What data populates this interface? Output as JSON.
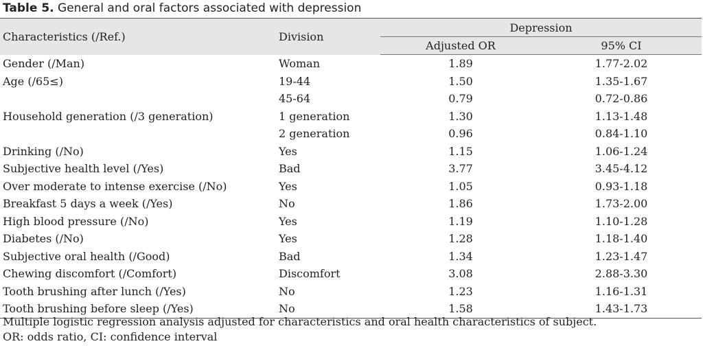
{
  "caption": {
    "label": "Table 5.",
    "title": "General and oral factors associated with depression"
  },
  "header": {
    "characteristics": "Characteristics (/Ref.)",
    "division": "Division",
    "group": "Depression",
    "adjusted_or": "Adjusted OR",
    "ci": "95% CI"
  },
  "rows": [
    {
      "characteristic": "Gender (/Man)",
      "division": "Woman",
      "or": "1.89",
      "ci": "1.77-2.02"
    },
    {
      "characteristic": "Age (/65≤)",
      "division": "19-44",
      "or": "1.50",
      "ci": "1.35-1.67"
    },
    {
      "characteristic": "",
      "division": "45-64",
      "or": "0.79",
      "ci": "0.72-0.86"
    },
    {
      "characteristic": "Household generation (/3 generation)",
      "division": "1 generation",
      "or": "1.30",
      "ci": "1.13-1.48"
    },
    {
      "characteristic": "",
      "division": "2 generation",
      "or": "0.96",
      "ci": "0.84-1.10"
    },
    {
      "characteristic": "Drinking (/No)",
      "division": "Yes",
      "or": "1.15",
      "ci": "1.06-1.24"
    },
    {
      "characteristic": "Subjective health level (/Yes)",
      "division": "Bad",
      "or": "3.77",
      "ci": "3.45-4.12"
    },
    {
      "characteristic": "Over moderate to intense exercise (/No)",
      "division": "Yes",
      "or": "1.05",
      "ci": "0.93-1.18"
    },
    {
      "characteristic": "Breakfast 5 days a week (/Yes)",
      "division": "No",
      "or": "1.86",
      "ci": "1.73-2.00"
    },
    {
      "characteristic": "High blood pressure (/No)",
      "division": "Yes",
      "or": "1.19",
      "ci": "1.10-1.28"
    },
    {
      "characteristic": "Diabetes (/No)",
      "division": "Yes",
      "or": "1.28",
      "ci": "1.18-1.40"
    },
    {
      "characteristic": "Subjective oral health (/Good)",
      "division": "Bad",
      "or": "1.34",
      "ci": "1.23-1.47"
    },
    {
      "characteristic": "Chewing discomfort (/Comfort)",
      "division": "Discomfort",
      "or": "3.08",
      "ci": "2.88-3.30"
    },
    {
      "characteristic": "Tooth brushing after lunch (/Yes)",
      "division": "No",
      "or": "1.23",
      "ci": "1.16-1.31"
    },
    {
      "characteristic": "Tooth brushing before sleep (/Yes)",
      "division": "No",
      "or": "1.58",
      "ci": "1.43-1.73"
    }
  ],
  "notes": [
    "Multiple logistic regression analysis adjusted for characteristics and oral health characteristics of subject.",
    "OR: odds ratio, CI: confidence interval"
  ]
}
